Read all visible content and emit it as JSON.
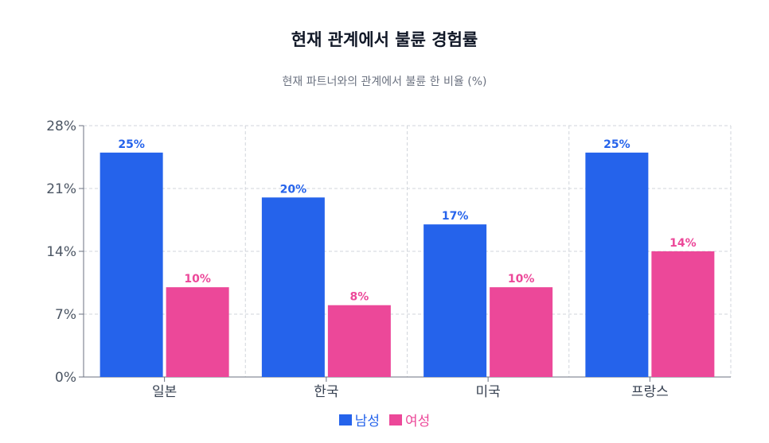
{
  "chart_data": {
    "type": "bar",
    "title": "현재 관계에서 불륜 경험률",
    "subtitle": "현재 파트너와의 관계에서 불륜 한 비율 (%)",
    "categories": [
      "일본",
      "한국",
      "미국",
      "프랑스"
    ],
    "series": [
      {
        "name": "남성",
        "color": "#2563eb",
        "values": [
          25,
          20,
          17,
          25
        ],
        "labels": [
          "25%",
          "20%",
          "17%",
          "25%"
        ]
      },
      {
        "name": "여성",
        "color": "#ec4899",
        "values": [
          10,
          8,
          10,
          14
        ],
        "labels": [
          "10%",
          "8%",
          "10%",
          "14%"
        ]
      }
    ],
    "ylim": [
      0,
      28
    ],
    "yticks": [
      0,
      7,
      14,
      21,
      28
    ],
    "ytick_labels": [
      "0%",
      "7%",
      "14%",
      "21%",
      "28%"
    ],
    "grid": true,
    "legend_position": "bottom"
  }
}
